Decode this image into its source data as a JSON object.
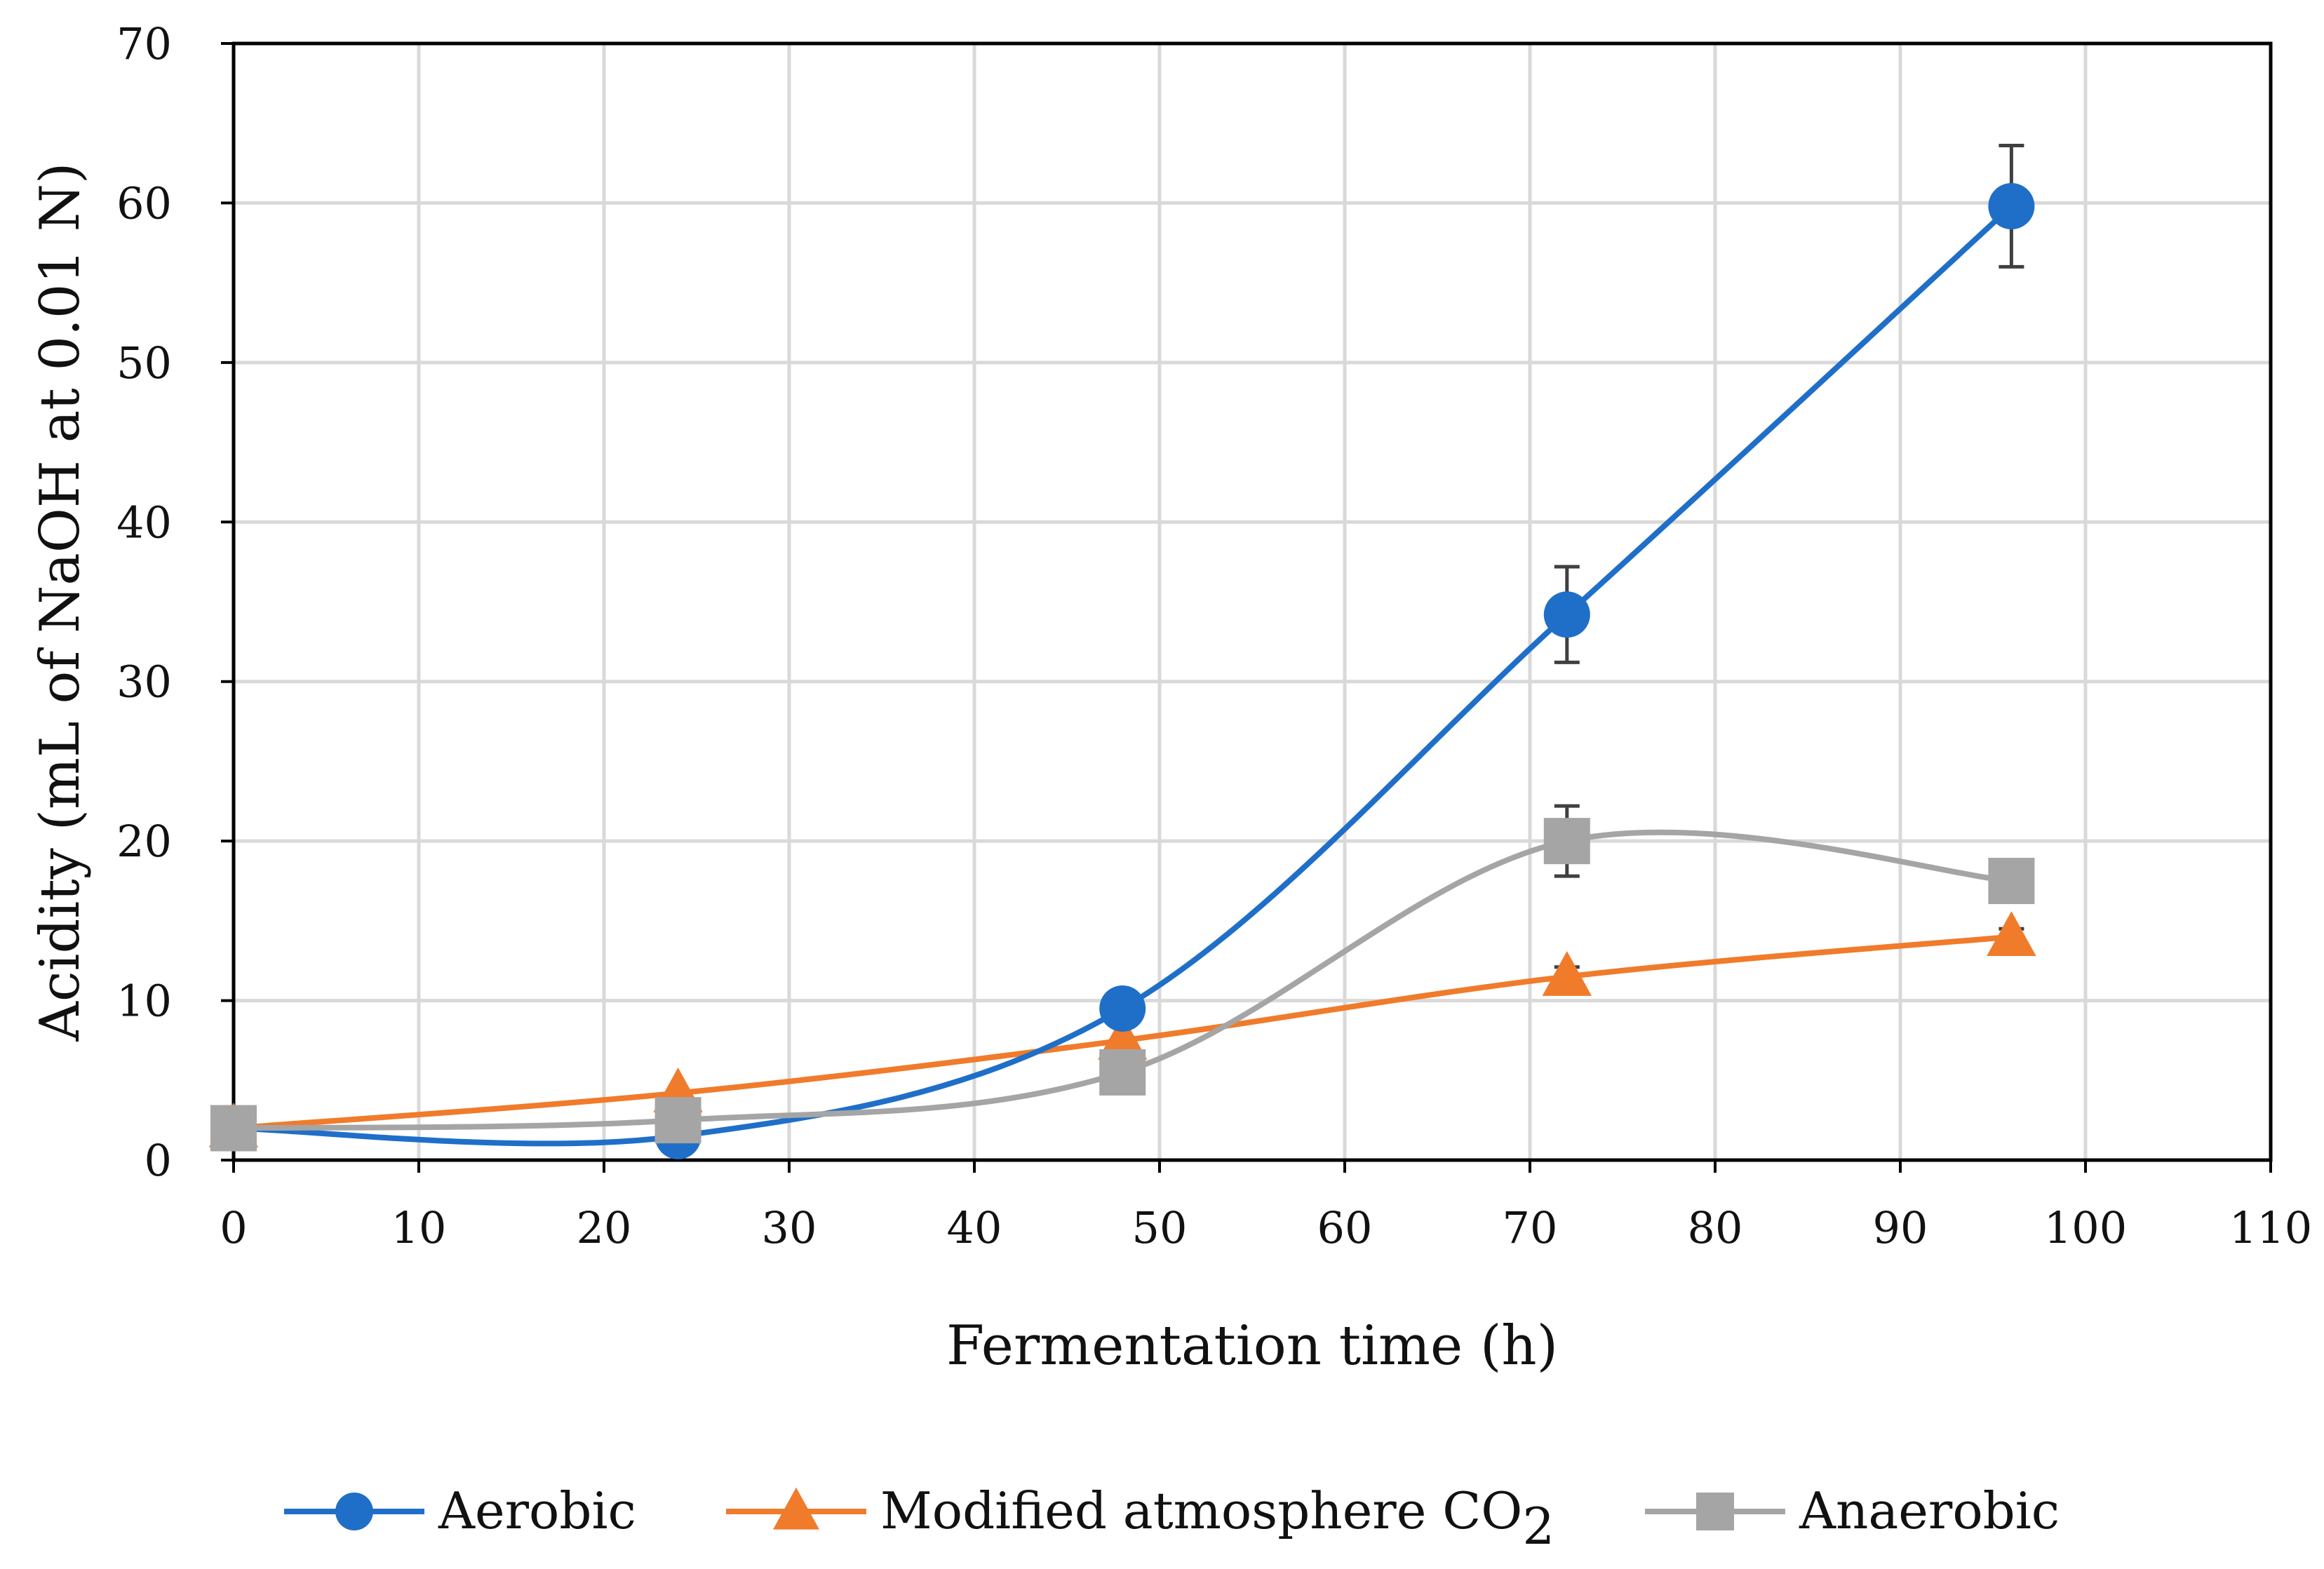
{
  "chart_data": {
    "type": "line",
    "title": "",
    "xlabel": "Fermentation time (h)",
    "ylabel": "Acidity (mL of NaOH at 0.01 N)",
    "xlim": [
      0,
      110
    ],
    "ylim": [
      0,
      70
    ],
    "x_ticks": [
      0,
      10,
      20,
      30,
      40,
      50,
      60,
      70,
      80,
      90,
      100,
      110
    ],
    "y_ticks": [
      0,
      10,
      20,
      30,
      40,
      50,
      60,
      70
    ],
    "grid": true,
    "smooth": true,
    "legend_position": "bottom",
    "series": [
      {
        "name": "Aerobic",
        "color": "#1f6fc9",
        "marker": "circle",
        "x": [
          0,
          24,
          48,
          72,
          96
        ],
        "y": [
          2,
          1.5,
          9.5,
          34.2,
          59.8
        ],
        "error": [
          0,
          0,
          0,
          3,
          3.8
        ]
      },
      {
        "name": "Modified atmosphere CO",
        "name_subscript": "2",
        "color": "#f07b2b",
        "marker": "triangle",
        "x": [
          0,
          24,
          48,
          72,
          96
        ],
        "y": [
          2,
          4.2,
          7.5,
          11.5,
          14
        ],
        "error": [
          0,
          0,
          0,
          0.6,
          0.5
        ]
      },
      {
        "name": "Anaerobic",
        "color": "#a5a5a5",
        "marker": "square",
        "x": [
          0,
          24,
          48,
          72,
          96
        ],
        "y": [
          2,
          2.5,
          5.5,
          20,
          17.5
        ],
        "error": [
          0,
          0,
          0,
          2.2,
          0
        ]
      }
    ]
  }
}
